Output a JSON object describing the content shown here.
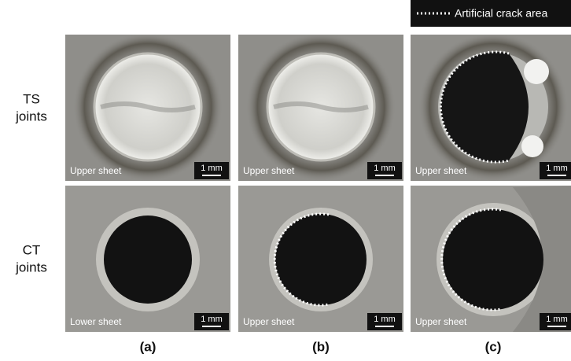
{
  "legend": {
    "label": "Artificial crack area"
  },
  "rows": [
    {
      "label": [
        "TS",
        "joints"
      ],
      "panels": [
        {
          "sheet": "Upper sheet",
          "scale": "1 mm"
        },
        {
          "sheet": "Upper sheet",
          "scale": "1 mm"
        },
        {
          "sheet": "Upper sheet",
          "scale": "1 mm"
        }
      ]
    },
    {
      "label": [
        "CT",
        "joints"
      ],
      "panels": [
        {
          "sheet": "Lower sheet",
          "scale": "1 mm"
        },
        {
          "sheet": "Upper sheet",
          "scale": "1 mm"
        },
        {
          "sheet": "Upper sheet",
          "scale": "1 mm"
        }
      ]
    }
  ],
  "columns": [
    "(a)",
    "(b)",
    "(c)"
  ]
}
